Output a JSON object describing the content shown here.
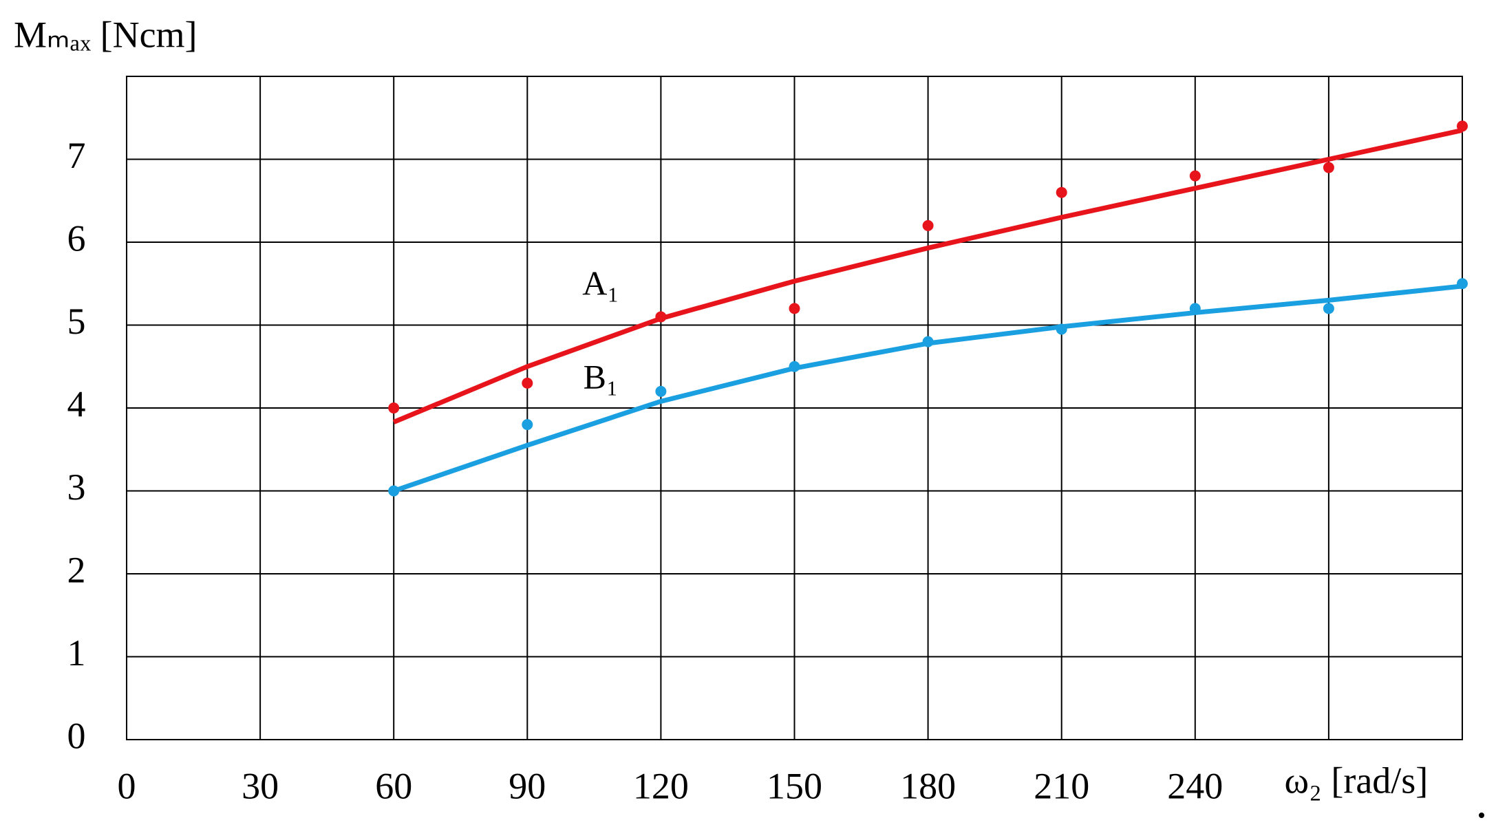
{
  "chart_data": {
    "type": "scatter",
    "y_label": "Mₘₐₓ [Ncm]",
    "x": [
      60,
      90,
      120,
      150,
      180,
      210,
      240,
      270,
      300
    ],
    "series": [
      {
        "name": "A₁",
        "color": "#e8141c",
        "values": [
          4.0,
          4.3,
          5.1,
          5.2,
          6.2,
          6.6,
          6.8,
          6.9,
          7.4
        ],
        "fit": [
          3.83,
          4.5,
          5.08,
          5.53,
          5.93,
          6.3,
          6.65,
          7.0,
          7.35
        ]
      },
      {
        "name": "B₁",
        "color": "#1a9fe0",
        "values": [
          3.0,
          3.8,
          4.2,
          4.5,
          4.8,
          4.95,
          5.2,
          5.2,
          5.5
        ],
        "fit": [
          3.0,
          3.55,
          4.08,
          4.48,
          4.78,
          4.98,
          5.15,
          5.3,
          5.47
        ]
      }
    ],
    "xlim": [
      0,
      300
    ],
    "ylim": [
      0,
      8
    ],
    "xticks": [
      0,
      30,
      60,
      90,
      120,
      150,
      180,
      210,
      240,
      {
        "value": 270,
        "label": "ω₂ [rad/s]"
      }
    ],
    "yticks": [
      0,
      1,
      2,
      3,
      4,
      5,
      6,
      7
    ],
    "grid": true
  }
}
